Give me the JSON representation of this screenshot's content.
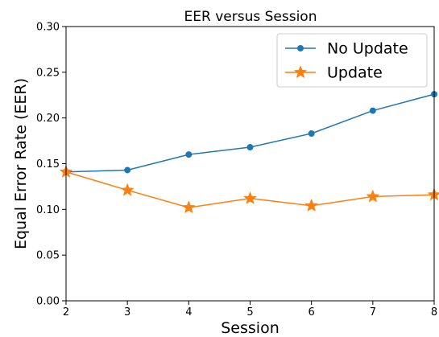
{
  "chart_data": {
    "type": "line",
    "title": "EER versus Session",
    "xlabel": "Session",
    "ylabel": "Equal Error Rate (EER)",
    "x": [
      2,
      3,
      4,
      5,
      6,
      7,
      8
    ],
    "xlim": [
      2,
      8
    ],
    "ylim": [
      0.0,
      0.3
    ],
    "xticks": [
      "2",
      "3",
      "4",
      "5",
      "6",
      "7",
      "8"
    ],
    "yticks": [
      "0.00",
      "0.05",
      "0.10",
      "0.15",
      "0.20",
      "0.25",
      "0.30"
    ],
    "grid": false,
    "legend_position": "top-right",
    "series": [
      {
        "name": "No Update",
        "values": [
          0.141,
          0.143,
          0.16,
          0.168,
          0.183,
          0.208,
          0.226
        ],
        "color": "#1f77b4",
        "marker": "circle"
      },
      {
        "name": "Update",
        "values": [
          0.141,
          0.121,
          0.102,
          0.112,
          0.104,
          0.114,
          0.116
        ],
        "color": "#ff7f0e",
        "marker": "star"
      }
    ]
  }
}
